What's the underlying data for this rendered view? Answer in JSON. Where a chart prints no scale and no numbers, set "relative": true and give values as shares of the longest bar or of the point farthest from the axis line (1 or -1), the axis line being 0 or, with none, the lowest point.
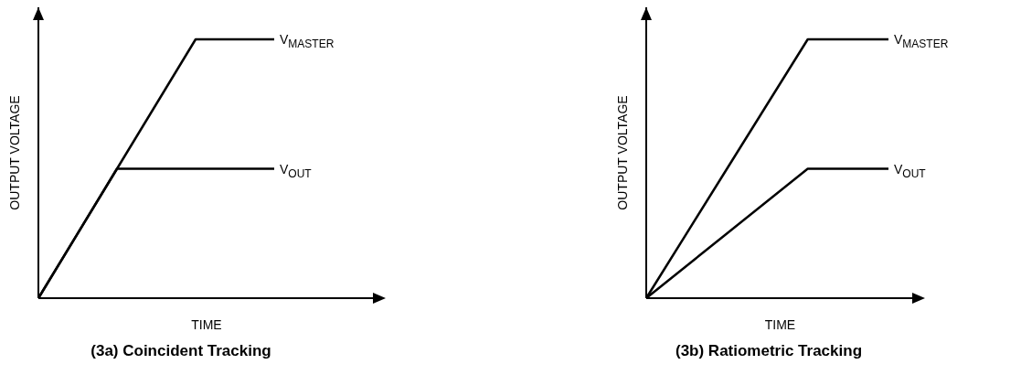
{
  "chart_data": [
    {
      "type": "line",
      "title": "(3a) Coincident Tracking",
      "xlabel": "TIME",
      "ylabel": "OUTPUT VOLTAGE",
      "relative": true,
      "categories": [
        null,
        null,
        null,
        null
      ],
      "series": [
        {
          "name": "V$_{MASTER}$",
          "color": "#000000",
          "values": [
            0,
            0.5,
            1,
            1
          ]
        },
        {
          "name": "V$_{OUT}$",
          "color": "#000000",
          "values": [
            0,
            0.5,
            0.5,
            0.5
          ]
        }
      ]
    },
    {
      "type": "line",
      "title": "(3b) Ratiometric Tracking",
      "xlabel": "TIME",
      "ylabel": "OUTPUT VOLTAGE",
      "relative": true,
      "categories": [
        null,
        null,
        null,
        null
      ],
      "series": [
        {
          "name": "V$_{MASTER}$",
          "color": "#000000",
          "values": [
            0,
            0.5,
            1,
            1
          ]
        },
        {
          "name": "V$_{OUT}$",
          "color": "#000000",
          "values": [
            0,
            0.25,
            0.5,
            0.5
          ]
        }
      ]
    }
  ]
}
